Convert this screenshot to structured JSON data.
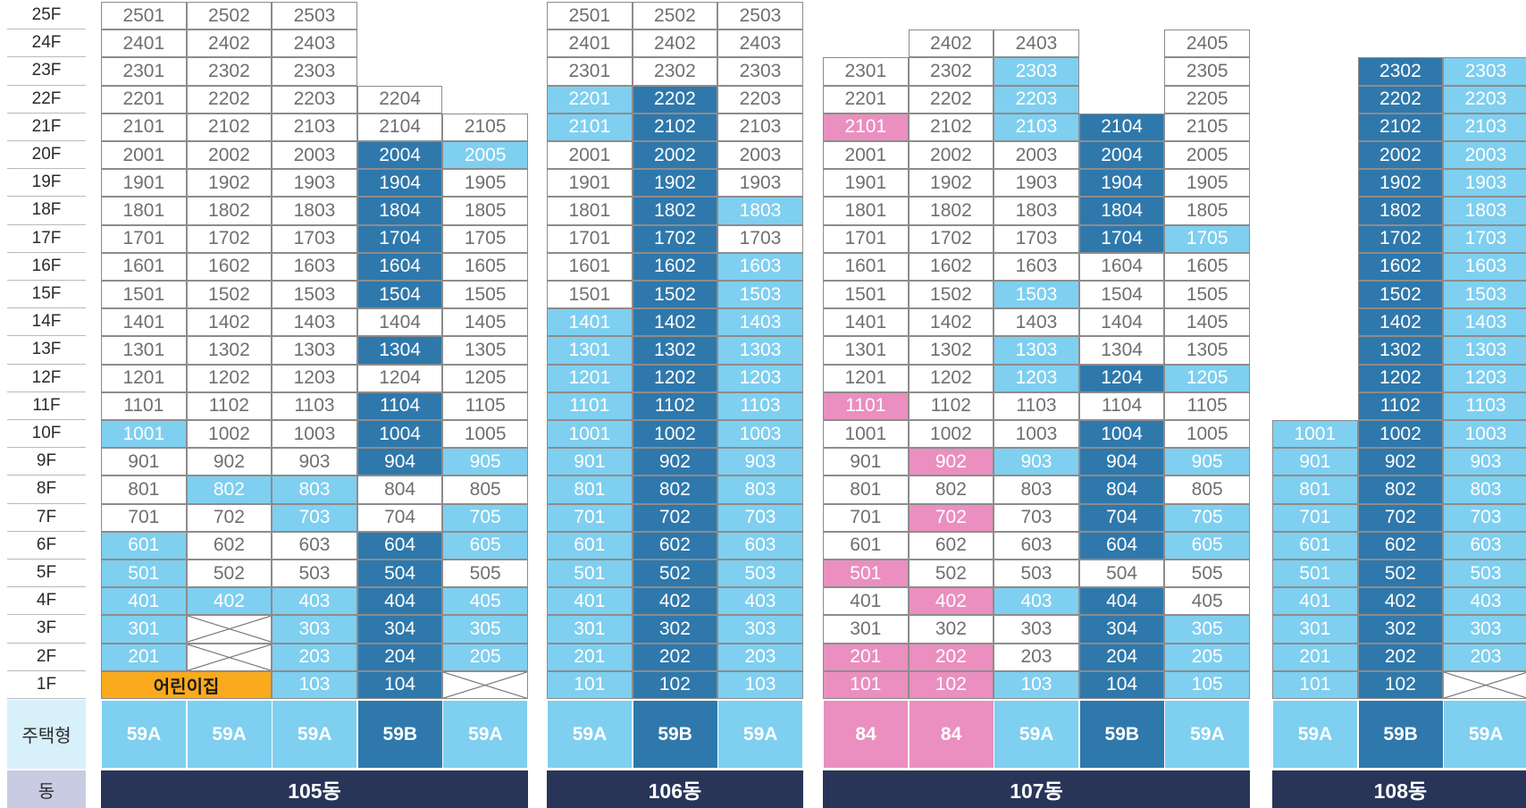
{
  "labels": {
    "house_type": "주택형",
    "dong": "동",
    "floors": [
      "25F",
      "24F",
      "23F",
      "22F",
      "21F",
      "20F",
      "19F",
      "18F",
      "17F",
      "16F",
      "15F",
      "14F",
      "13F",
      "12F",
      "11F",
      "10F",
      "9F",
      "8F",
      "7F",
      "6F",
      "5F",
      "4F",
      "3F",
      "2F",
      "1F"
    ]
  },
  "colors": {
    "available": "#ffffff",
    "light_blue": "#7fcff0",
    "dark_blue": "#2f78ac",
    "pink": "#ea8fbf",
    "orange": "#fbaa1d",
    "navy": "#283558"
  },
  "buildings": [
    {
      "name": "105동",
      "columns": [
        {
          "type": "59A",
          "type_color": "light",
          "top_floor": 25,
          "light": [
            10,
            6,
            5,
            4,
            3,
            2
          ],
          "dark": [],
          "pink": [],
          "special": {
            "1": {
              "text": "어린이집",
              "color": "orange",
              "span": 2
            }
          },
          "blocked": []
        },
        {
          "type": "59A",
          "type_color": "light",
          "top_floor": 25,
          "light": [
            8,
            4
          ],
          "dark": [],
          "pink": [],
          "special": {},
          "blocked": [
            3,
            2
          ]
        },
        {
          "type": "59A",
          "type_color": "light",
          "top_floor": 25,
          "light": [
            8,
            7,
            4,
            3,
            2,
            1
          ],
          "dark": [],
          "pink": [],
          "special": {},
          "blocked": []
        },
        {
          "type": "59B",
          "type_color": "dark",
          "top_floor": 22,
          "light": [],
          "dark": [
            20,
            19,
            18,
            17,
            16,
            15,
            13,
            11,
            10,
            9,
            6,
            5,
            4,
            3,
            2,
            1
          ],
          "pink": [],
          "special": {},
          "blocked": []
        },
        {
          "type": "59A",
          "type_color": "light",
          "top_floor": 21,
          "light": [
            20,
            9,
            7,
            6,
            4,
            3,
            2
          ],
          "dark": [],
          "pink": [],
          "special": {},
          "blocked": [
            1
          ]
        }
      ]
    },
    {
      "name": "106동",
      "columns": [
        {
          "type": "59A",
          "type_color": "light",
          "top_floor": 25,
          "light": [
            22,
            21,
            14,
            13,
            12,
            11,
            10,
            9,
            8,
            7,
            6,
            5,
            4,
            3,
            2,
            1
          ],
          "dark": [],
          "pink": [],
          "special": {},
          "blocked": []
        },
        {
          "type": "59B",
          "type_color": "dark",
          "top_floor": 25,
          "light": [],
          "dark": [
            22,
            21,
            20,
            19,
            18,
            17,
            16,
            15,
            14,
            13,
            12,
            11,
            10,
            9,
            8,
            7,
            6,
            5,
            4,
            3,
            2,
            1
          ],
          "pink": [],
          "special": {},
          "blocked": []
        },
        {
          "type": "59A",
          "type_color": "light",
          "top_floor": 25,
          "light": [
            18,
            16,
            15,
            14,
            13,
            12,
            11,
            10,
            9,
            8,
            7,
            6,
            5,
            4,
            3,
            2,
            1
          ],
          "dark": [],
          "pink": [],
          "special": {},
          "blocked": []
        }
      ]
    },
    {
      "name": "107동",
      "columns": [
        {
          "type": "84",
          "type_color": "pink",
          "top_floor": 23,
          "light": [],
          "dark": [],
          "pink": [
            21,
            11,
            5,
            2,
            1
          ],
          "special": {},
          "blocked": []
        },
        {
          "type": "84",
          "type_color": "pink",
          "top_floor": 24,
          "light": [],
          "dark": [],
          "pink": [
            9,
            7,
            4,
            2,
            1
          ],
          "special": {},
          "blocked": []
        },
        {
          "type": "59A",
          "type_color": "light",
          "top_floor": 24,
          "light": [
            23,
            22,
            21,
            15,
            13,
            12,
            9,
            4,
            1
          ],
          "dark": [],
          "pink": [],
          "special": {},
          "blocked": []
        },
        {
          "type": "59B",
          "type_color": "dark",
          "top_floor": 21,
          "light": [],
          "dark": [
            21,
            20,
            19,
            18,
            17,
            12,
            10,
            9,
            8,
            7,
            6,
            4,
            3,
            2,
            1
          ],
          "pink": [],
          "special": {},
          "blocked": []
        },
        {
          "type": "59A",
          "type_color": "light",
          "top_floor": 24,
          "light": [
            17,
            12,
            9,
            7,
            6,
            3,
            2,
            1
          ],
          "dark": [],
          "pink": [],
          "special": {},
          "blocked": []
        }
      ]
    },
    {
      "name": "108동",
      "columns": [
        {
          "type": "59A",
          "type_color": "light",
          "top_floor": 10,
          "light": [
            10,
            9,
            8,
            7,
            6,
            5,
            4,
            3,
            2,
            1
          ],
          "dark": [],
          "pink": [],
          "special": {},
          "blocked": []
        },
        {
          "type": "59B",
          "type_color": "dark",
          "top_floor": 23,
          "light": [],
          "dark": [
            23,
            22,
            21,
            20,
            19,
            18,
            17,
            16,
            15,
            14,
            13,
            12,
            11,
            10,
            9,
            8,
            7,
            6,
            5,
            4,
            3,
            2,
            1
          ],
          "pink": [],
          "special": {},
          "blocked": []
        },
        {
          "type": "59A",
          "type_color": "light",
          "top_floor": 23,
          "light": [
            23,
            22,
            21,
            20,
            19,
            18,
            17,
            16,
            15,
            14,
            13,
            12,
            11,
            10,
            9,
            8,
            7,
            6,
            5,
            4,
            3,
            2
          ],
          "dark": [],
          "pink": [],
          "special": {},
          "blocked": [
            1
          ]
        }
      ]
    }
  ]
}
